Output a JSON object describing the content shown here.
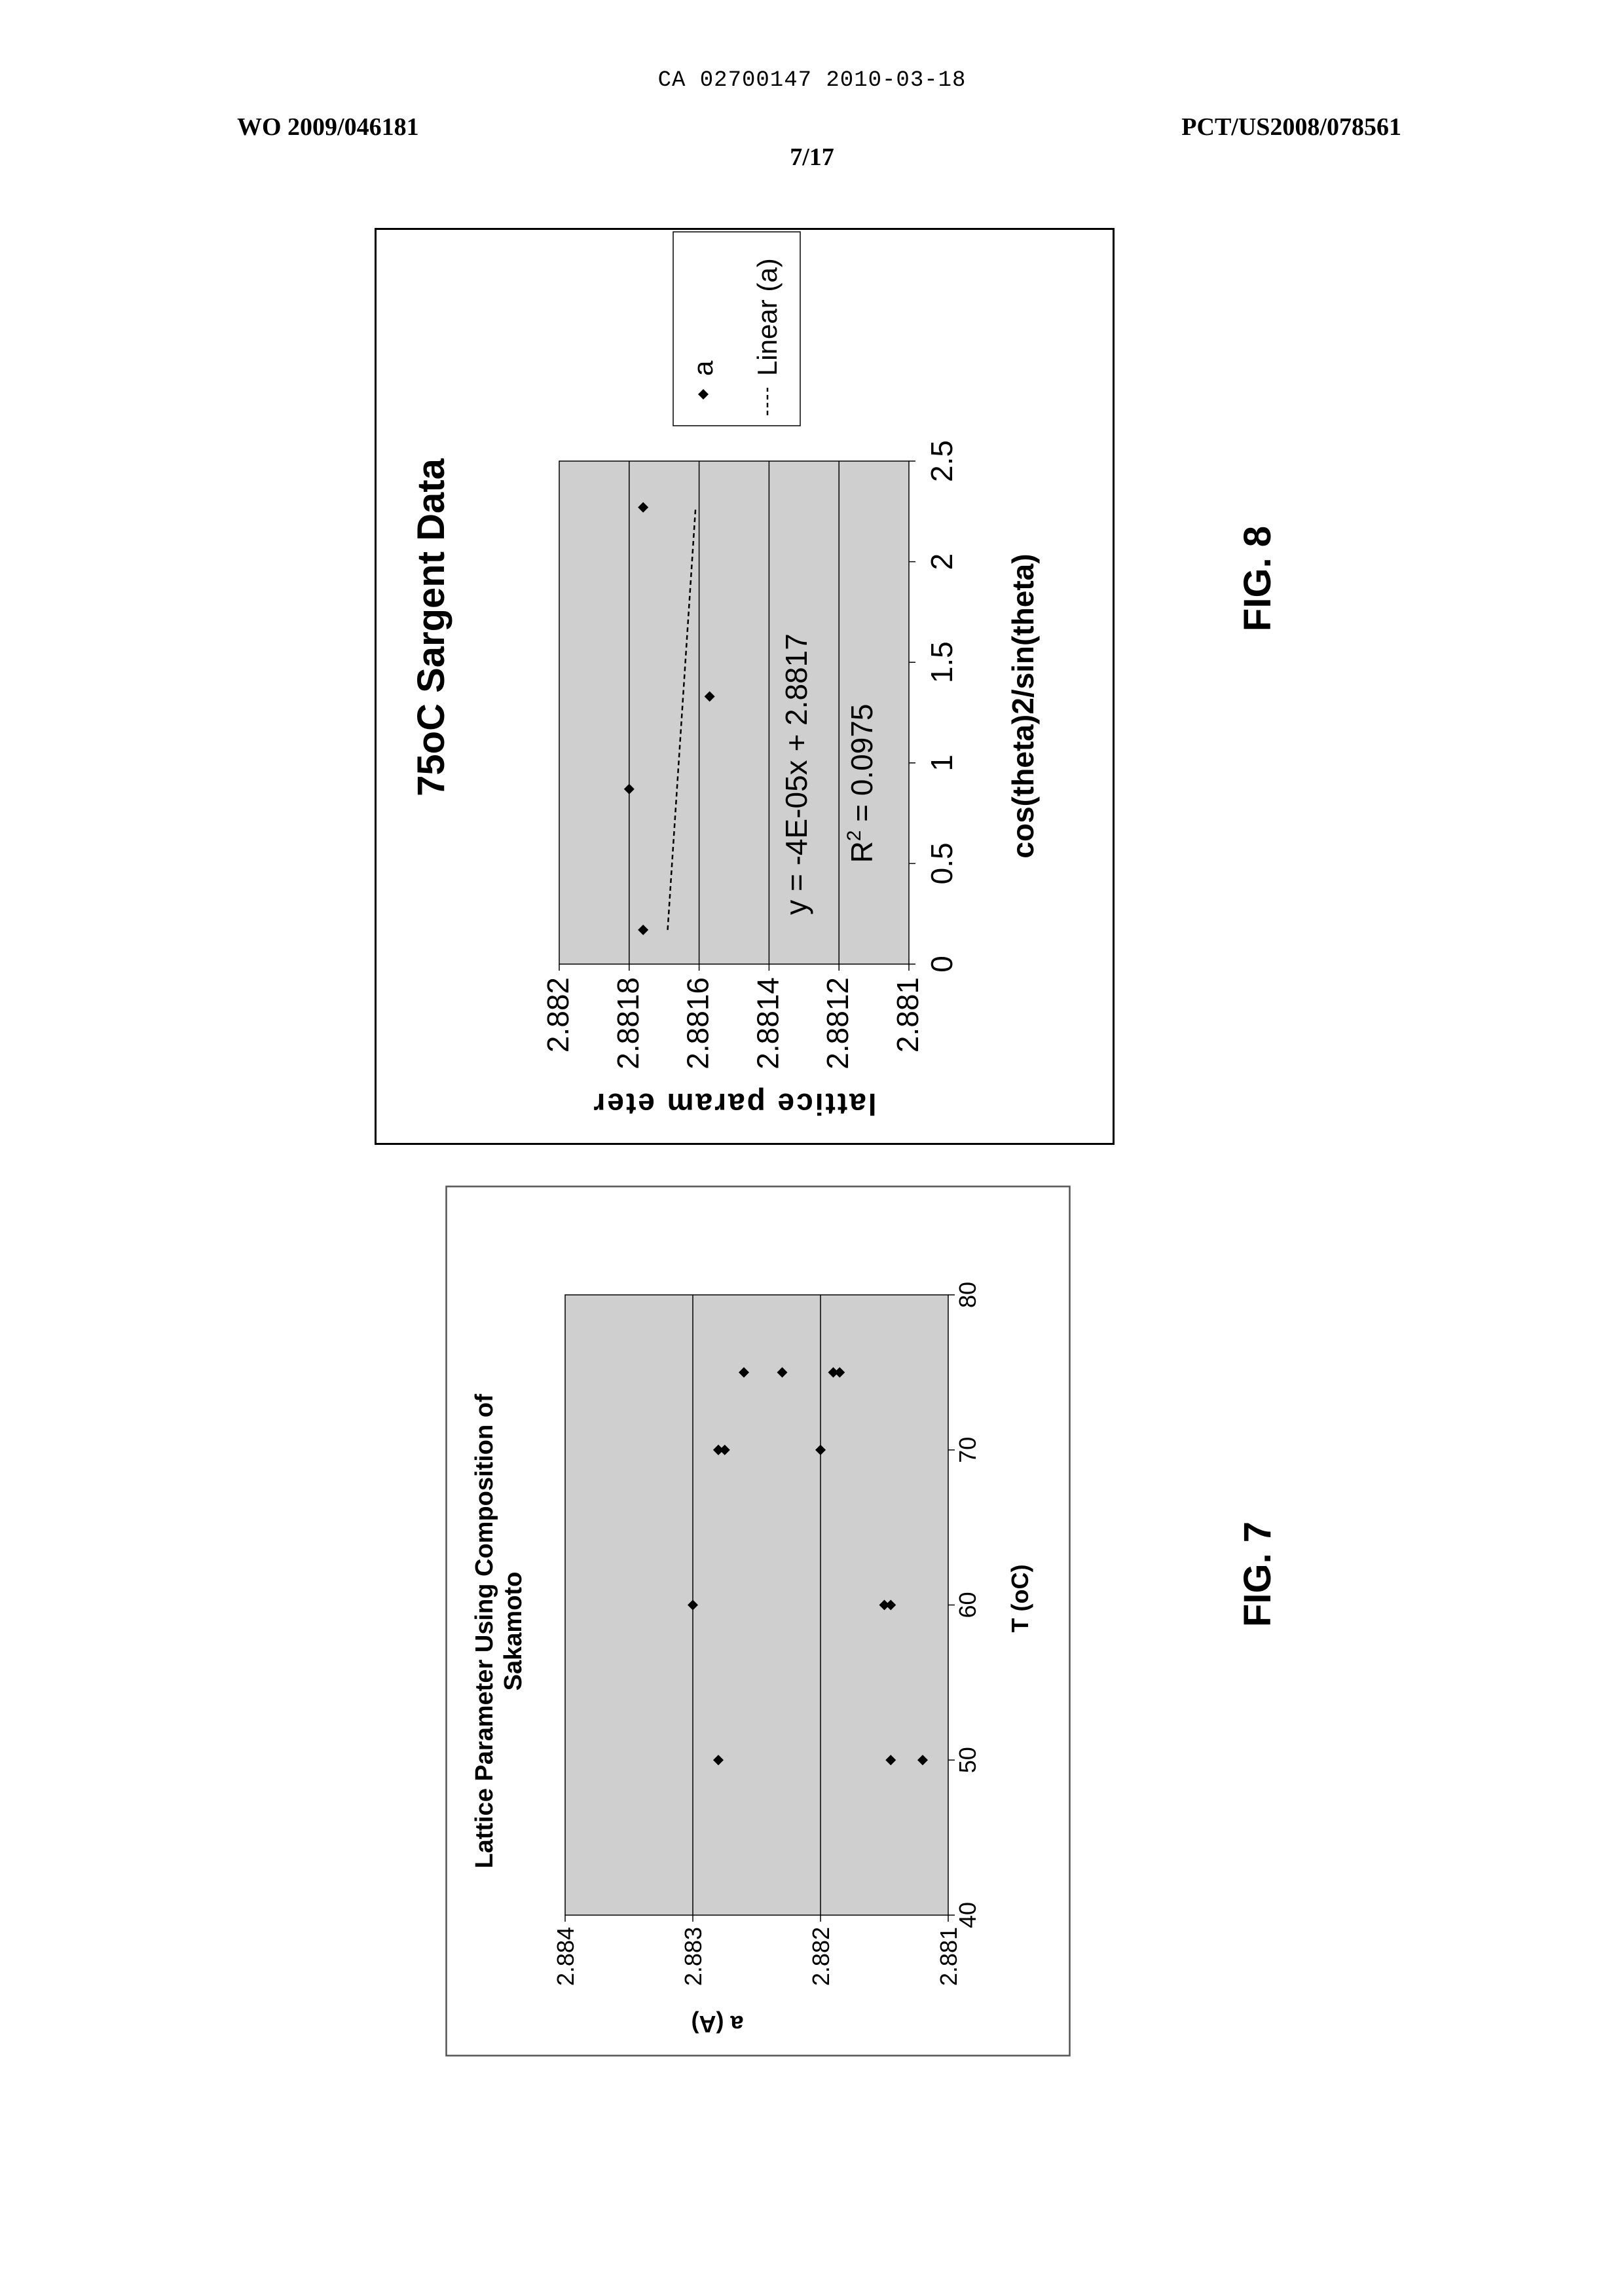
{
  "header": {
    "top_line": "CA 02700147 2010-03-18",
    "left": "WO 2009/046181",
    "right": "PCT/US2008/078561",
    "page": "7/17"
  },
  "fig7": {
    "label": "FIG. 7"
  },
  "fig8": {
    "label": "FIG. 8",
    "legend_marker": "a",
    "legend_line": "Linear (a)",
    "equation": "y = -4E-05x + 2.8817",
    "r2_prefix": "R",
    "r2_sup": "2",
    "r2_value": " = 0.0975"
  },
  "colors": {
    "plot_fill": "#cfcfcf",
    "ink": "#000000"
  },
  "chart_data": [
    {
      "type": "scatter",
      "title_lines": [
        "Lattice Parameter Using Composition of",
        "Sakamoto"
      ],
      "xlabel": "T (oC)",
      "ylabel": "a (A)",
      "xlim": [
        40,
        80
      ],
      "ylim": [
        2.881,
        2.884
      ],
      "xticks": [
        "40",
        "50",
        "60",
        "70",
        "80"
      ],
      "yticks": [
        "2.881",
        "2.882",
        "2.883",
        "2.884"
      ],
      "gridlines": "horizontal",
      "series": [
        {
          "points": [
            [
              50,
              2.8828
            ],
            [
              50,
              2.88145
            ],
            [
              50,
              2.8812
            ],
            [
              60,
              2.883
            ],
            [
              60,
              2.8815
            ],
            [
              60,
              2.88145
            ],
            [
              70,
              2.8828
            ],
            [
              70,
              2.8828
            ],
            [
              70,
              2.88275
            ],
            [
              70,
              2.882
            ],
            [
              75,
              2.8826
            ],
            [
              75,
              2.8823
            ],
            [
              75,
              2.8819
            ],
            [
              75,
              2.88185
            ]
          ]
        }
      ]
    },
    {
      "type": "scatter",
      "title": "75oC Sargent Data",
      "xlabel": "cos(theta)2/sin(theta)",
      "ylabel": "lattice param eter",
      "xlim": [
        0,
        2.5
      ],
      "ylim": [
        2.881,
        2.882
      ],
      "xticks": [
        "0",
        "0.5",
        "1",
        "1.5",
        "2",
        "2.5"
      ],
      "yticks": [
        "2.882",
        "2.8818",
        "2.8816",
        "2.8814",
        "2.8812",
        "2.881"
      ],
      "gridlines": "horizontal",
      "legend_position": "right",
      "series": [
        {
          "name": "a",
          "points": [
            [
              0.17,
              2.88176
            ],
            [
              0.87,
              2.8818
            ],
            [
              1.33,
              2.88157
            ],
            [
              2.27,
              2.88176
            ]
          ]
        },
        {
          "name": "Linear (a)",
          "line": [
            [
              0.17,
              2.88169
            ],
            [
              2.27,
              2.88161
            ]
          ]
        }
      ]
    }
  ]
}
